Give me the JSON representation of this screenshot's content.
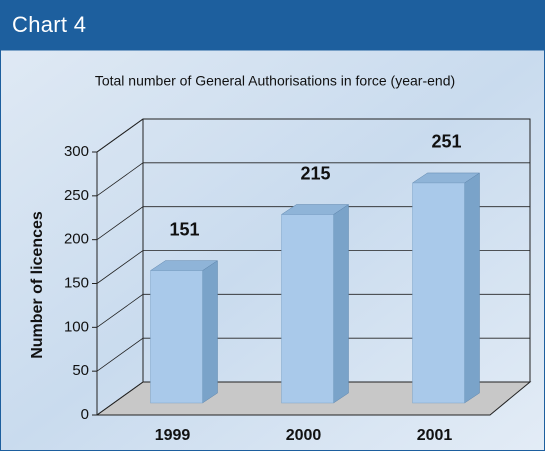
{
  "header": "Chart 4",
  "chart_data": {
    "type": "bar3d",
    "title": "Total number of General Authorisations in force (year-end)",
    "y_label": "Number of licences",
    "categories": [
      "1999",
      "2000",
      "2001"
    ],
    "values": [
      151,
      215,
      251
    ],
    "color": "#a9c9ea",
    "ylim": [
      0,
      300
    ],
    "yticks": [
      0,
      50,
      100,
      150,
      200,
      250,
      300
    ],
    "grid": true,
    "data_labels": true
  }
}
